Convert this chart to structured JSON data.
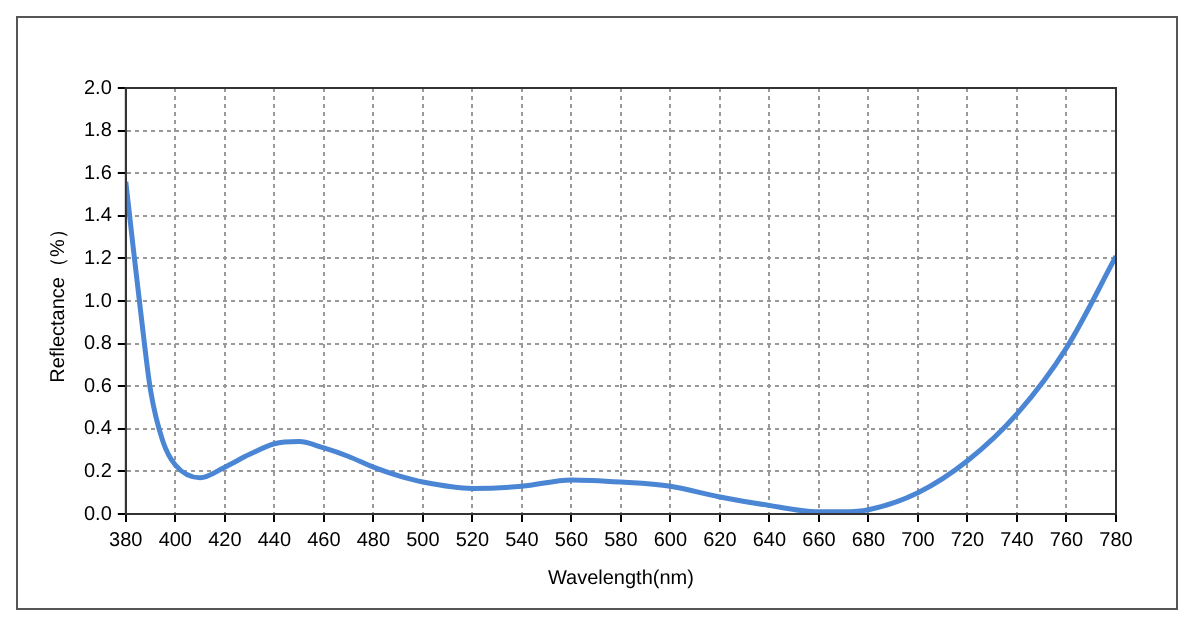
{
  "chart_data": {
    "type": "line",
    "xlabel": "Wavelength(nm)",
    "ylabel": "Reflectance（%）",
    "series": [
      {
        "color": "#4a86d4",
        "x": [
          380,
          383,
          386,
          390,
          395,
          400,
          410,
          420,
          430,
          440,
          450,
          460,
          470,
          480,
          490,
          500,
          520,
          540,
          560,
          580,
          600,
          620,
          640,
          660,
          670,
          680,
          700,
          720,
          740,
          760,
          780
        ],
        "values": [
          1.56,
          1.25,
          0.95,
          0.58,
          0.34,
          0.23,
          0.17,
          0.22,
          0.28,
          0.33,
          0.34,
          0.31,
          0.27,
          0.22,
          0.18,
          0.15,
          0.12,
          0.13,
          0.16,
          0.15,
          0.13,
          0.08,
          0.04,
          0.01,
          0.01,
          0.02,
          0.1,
          0.25,
          0.47,
          0.78,
          1.21
        ]
      }
    ],
    "xlim": [
      380,
      780
    ],
    "xticks": [
      380,
      400,
      420,
      440,
      460,
      480,
      500,
      520,
      540,
      560,
      580,
      600,
      620,
      640,
      660,
      680,
      700,
      720,
      740,
      760,
      780
    ],
    "ylim": [
      0,
      2
    ],
    "yticks": [
      {
        "value": 0,
        "label": "0.0"
      },
      {
        "value": 0.2,
        "label": "0.2"
      },
      {
        "value": 0.4,
        "label": "0.4"
      },
      {
        "value": 0.6,
        "label": "0.6"
      },
      {
        "value": 0.8,
        "label": "0.8"
      },
      {
        "value": 1,
        "label": "1.0"
      },
      {
        "value": 1.2,
        "label": "1.2"
      },
      {
        "value": 1.4,
        "label": "1.4"
      },
      {
        "value": 1.6,
        "label": "1.6"
      },
      {
        "value": 1.8,
        "label": "1.8"
      },
      {
        "value": 2,
        "label": "2.0"
      }
    ],
    "grid": true,
    "legend": false,
    "marker": "none",
    "line_style": "solid"
  }
}
